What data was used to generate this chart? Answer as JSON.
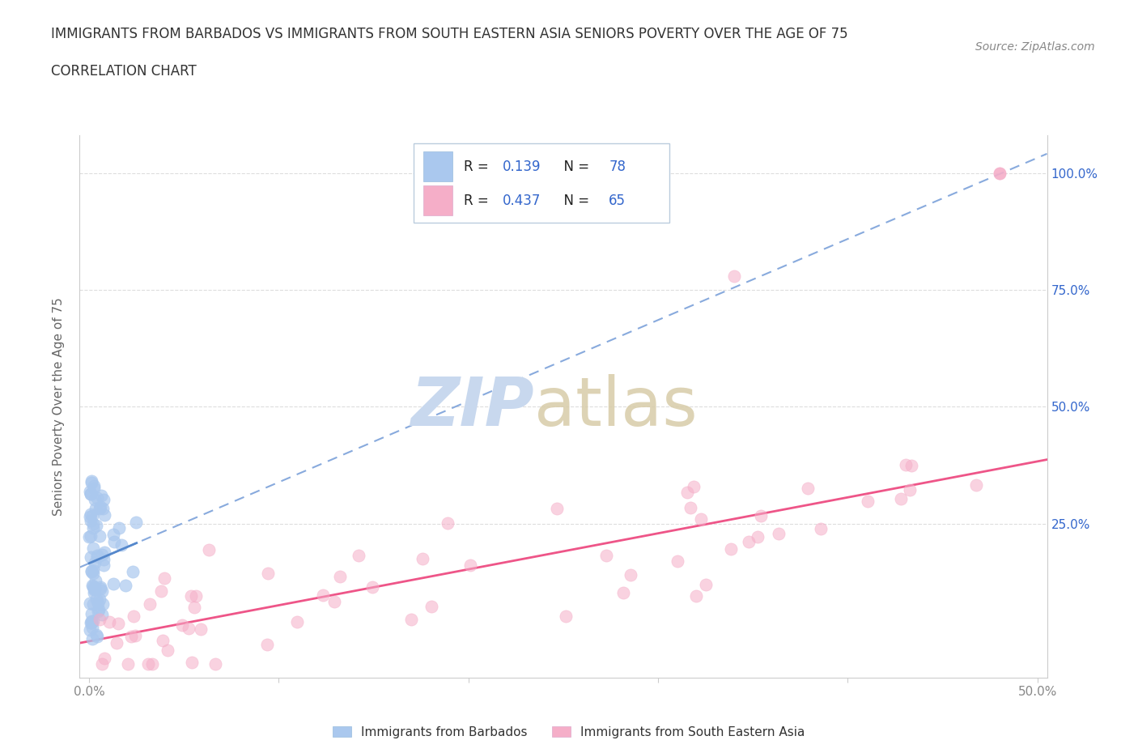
{
  "title_line1": "IMMIGRANTS FROM BARBADOS VS IMMIGRANTS FROM SOUTH EASTERN ASIA SENIORS POVERTY OVER THE AGE OF 75",
  "title_line2": "CORRELATION CHART",
  "source_text": "Source: ZipAtlas.com",
  "ylabel": "Seniors Poverty Over the Age of 75",
  "xlim_min": -0.005,
  "xlim_max": 0.505,
  "ylim_min": -0.08,
  "ylim_max": 1.08,
  "xtick_vals": [
    0.0,
    0.1,
    0.2,
    0.3,
    0.4,
    0.5
  ],
  "xtick_labels": [
    "0.0%",
    "",
    "",
    "",
    "",
    "50.0%"
  ],
  "ytick_vals": [
    0.0,
    0.25,
    0.5,
    0.75,
    1.0
  ],
  "ytick_labels_right": [
    "",
    "25.0%",
    "50.0%",
    "75.0%",
    "100.0%"
  ],
  "barbados_color": "#aac8ee",
  "sea_color": "#f5aec8",
  "barbados_line_color": "#5588cc",
  "barbados_dash_color": "#88aadd",
  "sea_line_color": "#ee5588",
  "legend_text_color": "#3366cc",
  "watermark_zip_color": "#c8d8ee",
  "watermark_atlas_color": "#d8cca8",
  "r_barbados": 0.139,
  "n_barbados": 78,
  "r_sea": 0.437,
  "n_sea": 65,
  "background_color": "#ffffff",
  "grid_color": "#dddddd",
  "spine_color": "#cccccc",
  "axis_label_color": "#666666",
  "tick_label_color": "#888888"
}
